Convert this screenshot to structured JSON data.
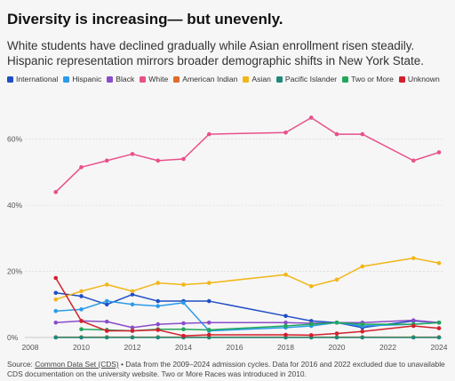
{
  "header": {
    "title": "Diversity is increasing— but unevenly.",
    "subtitle": "White students have declined gradually while Asian enrollment risen steadily. Hispanic representation mirrors broader demographic shifts in New York State."
  },
  "source": {
    "label": "Source:",
    "link_text": "Common Data Set (CDS)",
    "text": " • Data from the 2009–2024 admission cycles. Data for 2016 and 2022 excluded due to unavailable CDS documentation on the university website. Two or More Races was introduced in 2010."
  },
  "chart_data": {
    "type": "line",
    "title": "Diversity is increasing— but unevenly.",
    "x": [
      2009,
      2010,
      2011,
      2012,
      2013,
      2014,
      2015,
      2018,
      2019,
      2020,
      2021,
      2023,
      2024
    ],
    "xlim": [
      2008,
      2024
    ],
    "ylim": [
      0,
      72
    ],
    "xticks": [
      "2008",
      "2010",
      "2012",
      "2014",
      "2016",
      "2018",
      "2020",
      "2022",
      "2024"
    ],
    "yticks": [
      "0%",
      "20%",
      "40%",
      "60%"
    ],
    "grid": "horizontal",
    "legend_position": "top",
    "series": [
      {
        "name": "International",
        "color": "#1f4fc4",
        "values": [
          13.5,
          12.5,
          10,
          13,
          11,
          11,
          11,
          6.5,
          5,
          4.5,
          3,
          5,
          4.5
        ]
      },
      {
        "name": "Hispanic",
        "color": "#2b9be8",
        "values": [
          8,
          8.5,
          11,
          10,
          9.5,
          10.5,
          2,
          3,
          3.5,
          4.5,
          3.5,
          4,
          4.5
        ]
      },
      {
        "name": "Black",
        "color": "#8a4cc9",
        "values": [
          4.5,
          5,
          4.8,
          3,
          4,
          4.3,
          4.5,
          4.5,
          4.3,
          4.5,
          4.5,
          5.2,
          4.5
        ]
      },
      {
        "name": "White",
        "color": "#e8508b",
        "values": [
          44,
          51.5,
          53.5,
          55.5,
          53.5,
          54,
          61.5,
          62,
          66.5,
          61.5,
          61.5,
          53.5,
          56
        ]
      },
      {
        "name": "American Indian",
        "color": "#e06a2a",
        "values": [
          0.1,
          0.1,
          0.1,
          0.1,
          0.1,
          0.1,
          0.1,
          0.1,
          0.1,
          0.1,
          0.1,
          0.1,
          0.1
        ]
      },
      {
        "name": "Asian",
        "color": "#f2b619",
        "values": [
          11.5,
          14,
          16,
          14,
          16.5,
          16,
          16.5,
          19,
          15.5,
          17.5,
          21.5,
          24,
          22.5
        ]
      },
      {
        "name": "Pacific Islander",
        "color": "#1f8a7a",
        "values": [
          0,
          0,
          0,
          0,
          0,
          0,
          0,
          0,
          0,
          0,
          0,
          0,
          0
        ]
      },
      {
        "name": "Two or More",
        "color": "#1fa85a",
        "values": [
          null,
          2.5,
          2.3,
          2,
          2.5,
          2.5,
          2.3,
          3.5,
          4,
          4.5,
          4,
          4,
          4.5
        ]
      },
      {
        "name": "Unknown",
        "color": "#d21f2b",
        "values": [
          18,
          5,
          2,
          2,
          2.3,
          0.5,
          0.8,
          0.8,
          0.7,
          1.2,
          1.8,
          3.5,
          2.8
        ]
      }
    ]
  }
}
